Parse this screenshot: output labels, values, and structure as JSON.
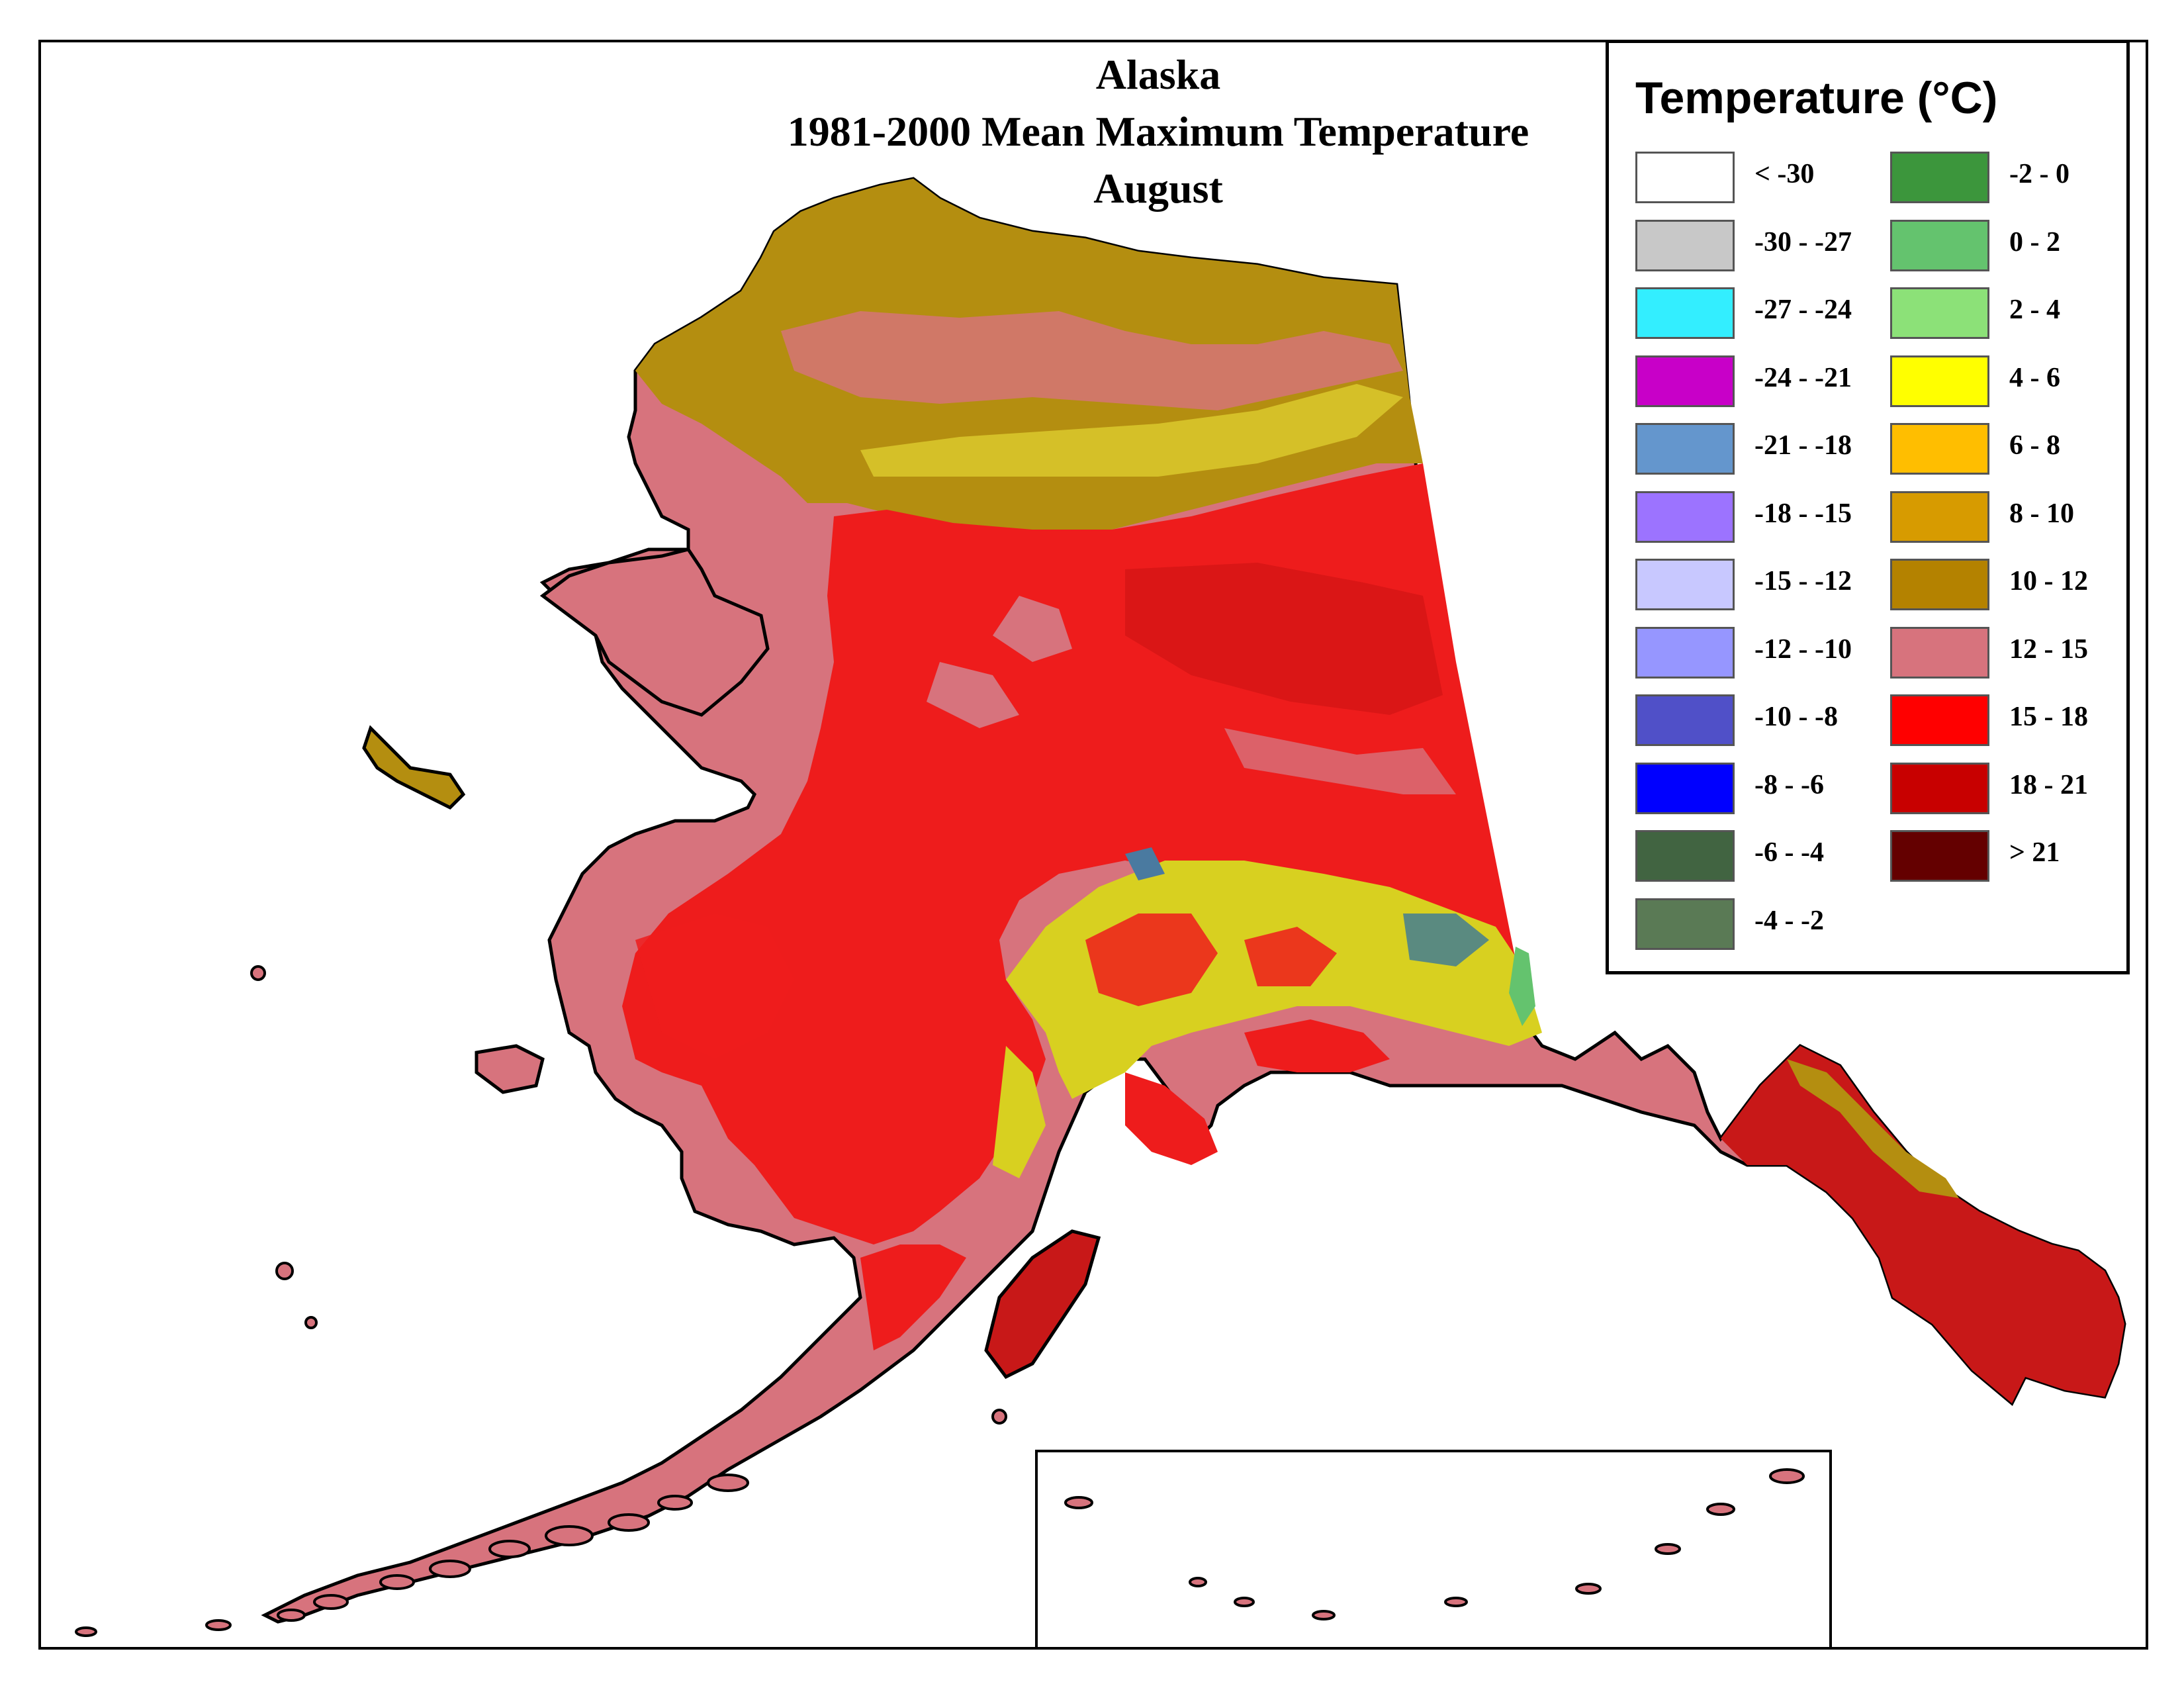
{
  "title": {
    "line1": "Alaska",
    "line2": "1981-2000 Mean Maximum Temperature",
    "line3": "August"
  },
  "legend": {
    "title": "Temperature (°C)",
    "items": [
      {
        "label": "< -30",
        "color": "#ffffff"
      },
      {
        "label": "-30 - -27",
        "color": "#c8c8c8"
      },
      {
        "label": "-27 - -24",
        "color": "#33eeff"
      },
      {
        "label": "-24 - -21",
        "color": "#c800c8"
      },
      {
        "label": "-21 - -18",
        "color": "#6496cd"
      },
      {
        "label": "-18 - -15",
        "color": "#9c73ff"
      },
      {
        "label": "-15 - -12",
        "color": "#c8c8ff"
      },
      {
        "label": "-12 - -10",
        "color": "#9696ff"
      },
      {
        "label": "-10 - -8",
        "color": "#5050c8"
      },
      {
        "label": "-8 - -6",
        "color": "#0000ff"
      },
      {
        "label": "-6 - -4",
        "color": "#416441"
      },
      {
        "label": "-4 - -2",
        "color": "#5a7a55"
      },
      {
        "label": "-2 - 0",
        "color": "#3c963c"
      },
      {
        "label": "0 - 2",
        "color": "#64c36e"
      },
      {
        "label": "2 - 4",
        "color": "#8ce178"
      },
      {
        "label": "4 - 6",
        "color": "#ffff00"
      },
      {
        "label": "6 - 8",
        "color": "#ffbe00"
      },
      {
        "label": "8 - 10",
        "color": "#d79b00"
      },
      {
        "label": "10 - 12",
        "color": "#b48200"
      },
      {
        "label": "12 - 15",
        "color": "#d7737d"
      },
      {
        "label": "15 - 18",
        "color": "#ff0000"
      },
      {
        "label": "18 - 21",
        "color": "#c80000"
      },
      {
        "label": "> 21",
        "color": "#640000"
      }
    ]
  }
}
